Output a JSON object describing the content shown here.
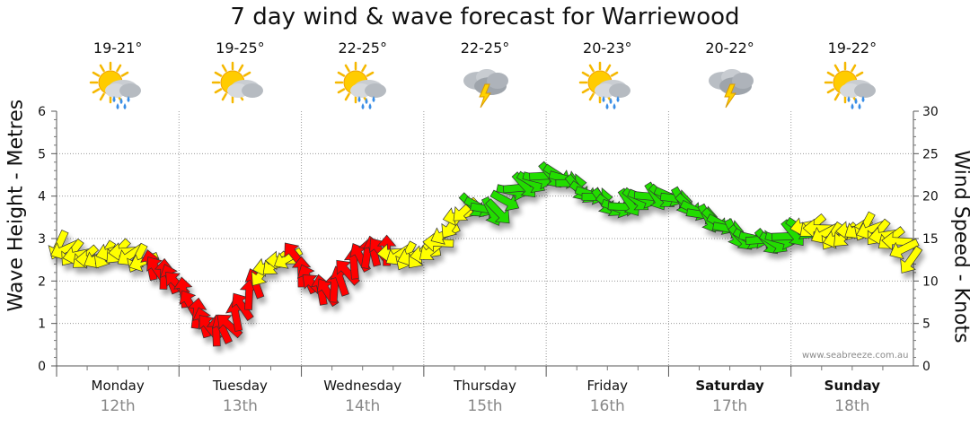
{
  "chart_data": {
    "type": "line",
    "title": "7 day wind & wave forecast for Warriewood",
    "ylabel_left": "Wave Height - Metres",
    "ylabel_right": "Wind Speed - Knots",
    "ylim_left": [
      0,
      6
    ],
    "ylim_right": [
      0,
      30
    ],
    "left_ticks": [
      "0",
      "1",
      "2",
      "3",
      "4",
      "5",
      "6"
    ],
    "right_ticks": [
      "0",
      "5",
      "10",
      "15",
      "20",
      "25",
      "30"
    ],
    "watermark": "www.seabreeze.com.au",
    "days": [
      {
        "name": "Monday",
        "date": "12th",
        "temp": "19-21°",
        "weather": "sun-cloud-rain",
        "bold": false
      },
      {
        "name": "Tuesday",
        "date": "13th",
        "temp": "19-25°",
        "weather": "sun-cloud",
        "bold": false
      },
      {
        "name": "Wednesday",
        "date": "14th",
        "temp": "22-25°",
        "weather": "sun-cloud-rain",
        "bold": false
      },
      {
        "name": "Thursday",
        "date": "15th",
        "temp": "22-25°",
        "weather": "storm",
        "bold": false
      },
      {
        "name": "Friday",
        "date": "16th",
        "temp": "20-23°",
        "weather": "sun-cloud-rain",
        "bold": false
      },
      {
        "name": "Saturday",
        "date": "17th",
        "temp": "20-22°",
        "weather": "storm",
        "bold": true
      },
      {
        "name": "Sunday",
        "date": "18th",
        "temp": "19-22°",
        "weather": "sun-cloud-rain",
        "bold": true
      }
    ],
    "wind_series": {
      "name": "Wind Speed (knots)",
      "x_days": [
        0.0,
        0.1,
        0.2,
        0.3,
        0.45,
        0.55,
        0.7,
        0.85,
        1.0,
        1.1,
        1.2,
        1.3,
        1.4,
        1.5,
        1.6,
        1.7,
        1.85,
        1.95,
        2.0,
        2.1,
        2.2,
        2.3,
        2.4,
        2.5,
        2.6,
        2.7,
        2.85,
        3.0,
        3.1,
        3.2,
        3.3,
        3.4,
        3.5,
        3.6,
        3.7,
        3.85,
        4.0,
        4.1,
        4.2,
        4.3,
        4.4,
        4.5,
        4.6,
        4.7,
        4.85,
        5.0,
        5.1,
        5.2,
        5.3,
        5.4,
        5.5,
        5.6,
        5.7,
        5.85,
        6.0,
        6.1,
        6.2,
        6.3,
        6.4,
        6.5,
        6.6,
        6.75,
        6.9,
        6.98
      ],
      "values": [
        14.5,
        13.5,
        13.0,
        12.5,
        13.5,
        13.5,
        12.5,
        11.0,
        9.5,
        7.0,
        5.0,
        4.0,
        4.5,
        6.5,
        9.0,
        11.5,
        12.5,
        13.0,
        11.0,
        9.5,
        8.5,
        9.5,
        11.5,
        13.0,
        13.5,
        13.5,
        13.0,
        13.0,
        14.0,
        16.0,
        18.0,
        19.0,
        18.5,
        18.0,
        20.5,
        21.5,
        22.5,
        22.5,
        21.5,
        20.5,
        20.0,
        19.0,
        18.5,
        19.5,
        20.0,
        20.0,
        19.5,
        18.5,
        17.5,
        17.0,
        16.0,
        15.0,
        15.0,
        14.5,
        15.5,
        16.5,
        16.5,
        15.5,
        15.0,
        16.0,
        16.5,
        15.5,
        14.5,
        12.5
      ],
      "color_bands": [
        {
          "from_day": 0.0,
          "to_day": 0.72,
          "color": "#ffff00"
        },
        {
          "from_day": 0.72,
          "to_day": 1.65,
          "color": "#ff0000"
        },
        {
          "from_day": 1.65,
          "to_day": 1.9,
          "color": "#ffff00"
        },
        {
          "from_day": 1.9,
          "to_day": 2.7,
          "color": "#ff0000"
        },
        {
          "from_day": 2.7,
          "to_day": 3.35,
          "color": "#ffff00"
        },
        {
          "from_day": 3.35,
          "to_day": 6.1,
          "color": "#22dd00"
        },
        {
          "from_day": 6.1,
          "to_day": 7.0,
          "color": "#ffff00"
        }
      ]
    }
  }
}
